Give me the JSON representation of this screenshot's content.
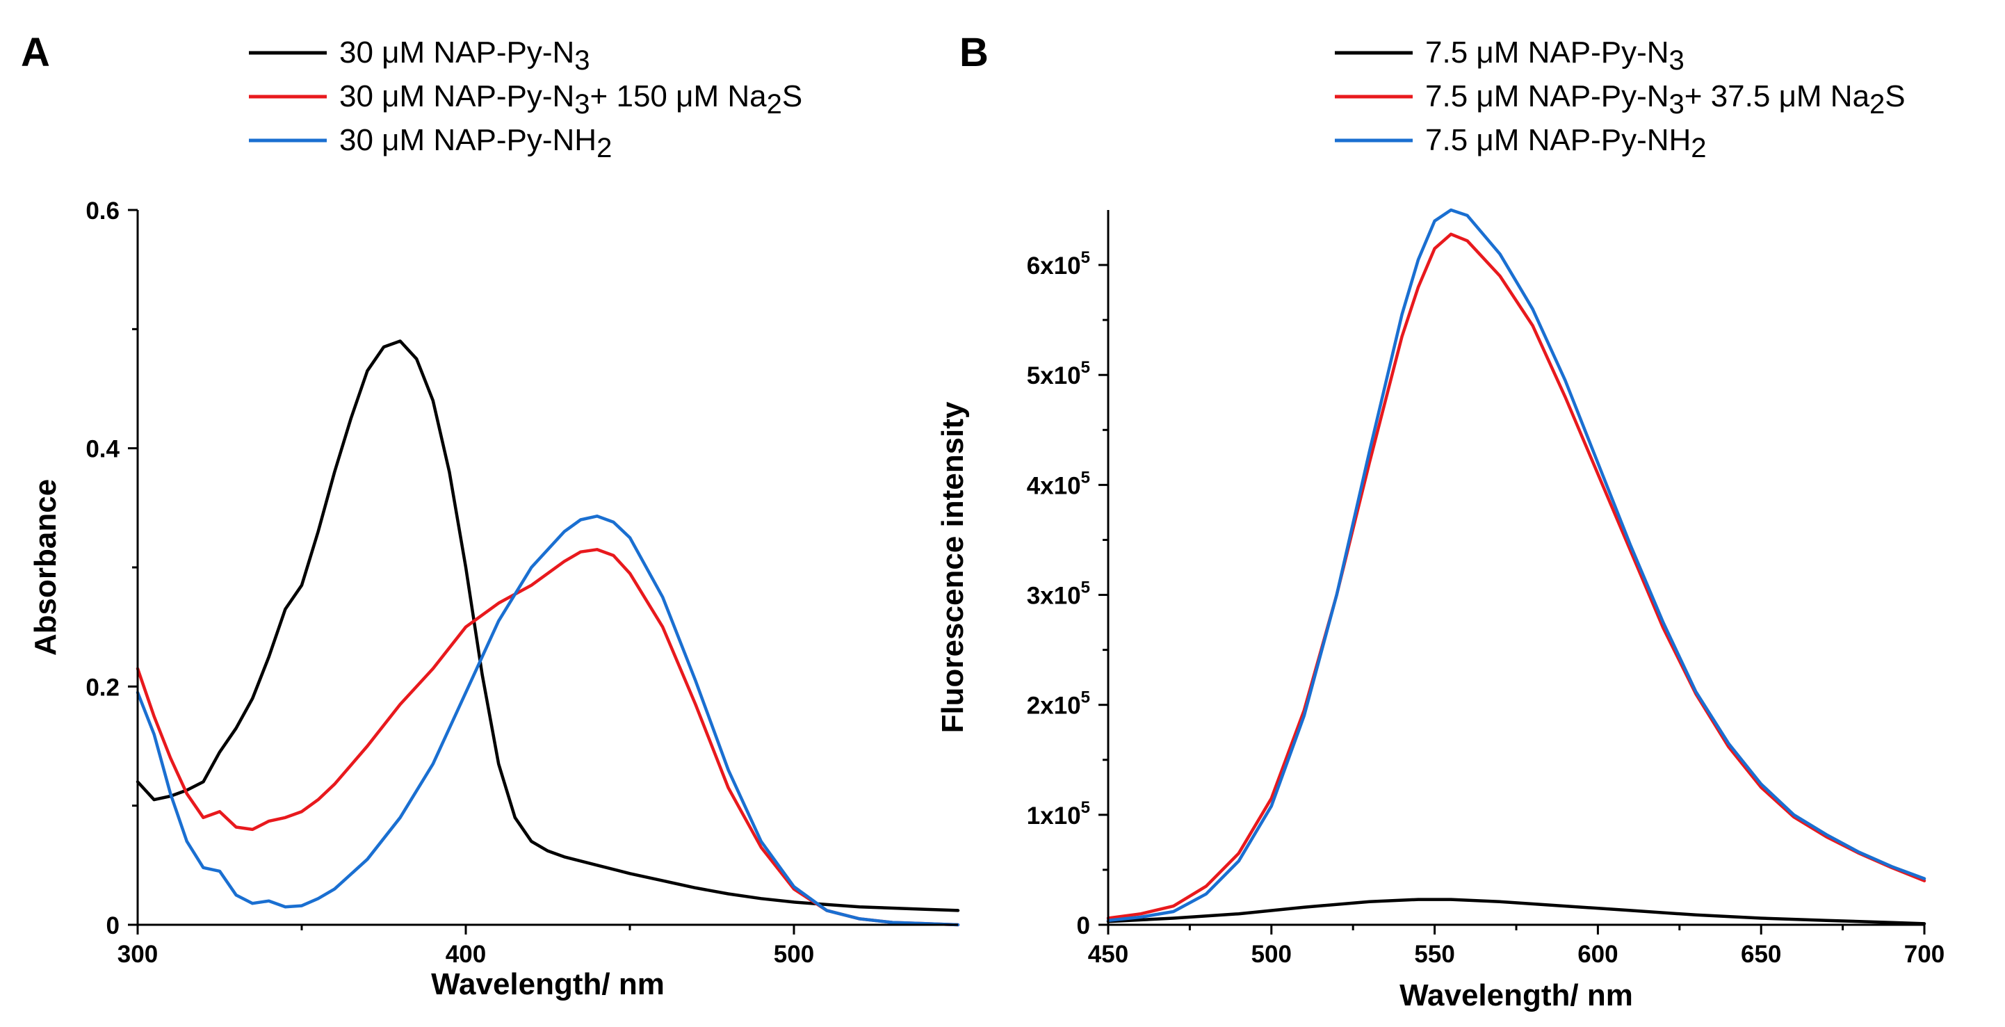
{
  "chart_data": [
    {
      "panel": "A",
      "type": "line",
      "xlabel": "Wavelength/ nm",
      "ylabel": "Absorbance",
      "xlim": [
        300,
        550
      ],
      "ylim": [
        0,
        0.6
      ],
      "xticks": [
        300,
        400,
        500
      ],
      "yticks": [
        0,
        0.2,
        0.4,
        0.6
      ],
      "xtick_labels": [
        "300",
        "400",
        "500"
      ],
      "ytick_labels": [
        "0",
        "0.2",
        "0.4",
        "0.6"
      ],
      "grid": false,
      "legend_position": "top",
      "series": [
        {
          "name": "30 μM NAP-Py-N3",
          "legend_parts": [
            "30 μM NAP-Py-N",
            "3"
          ],
          "color": "#000000",
          "x": [
            300,
            305,
            310,
            315,
            320,
            325,
            330,
            335,
            340,
            345,
            350,
            355,
            360,
            365,
            370,
            375,
            380,
            385,
            390,
            395,
            400,
            405,
            410,
            415,
            420,
            425,
            430,
            440,
            450,
            460,
            470,
            480,
            490,
            500,
            510,
            520,
            530,
            540,
            550
          ],
          "y": [
            0.12,
            0.105,
            0.108,
            0.113,
            0.12,
            0.145,
            0.165,
            0.19,
            0.225,
            0.265,
            0.285,
            0.33,
            0.38,
            0.425,
            0.465,
            0.485,
            0.49,
            0.475,
            0.44,
            0.38,
            0.3,
            0.21,
            0.135,
            0.09,
            0.07,
            0.062,
            0.057,
            0.05,
            0.043,
            0.037,
            0.031,
            0.026,
            0.022,
            0.019,
            0.017,
            0.015,
            0.014,
            0.013,
            0.012
          ]
        },
        {
          "name": "30 μM NAP-Py-N3+ 150 μM Na2S",
          "legend_parts": [
            "30 μM NAP-Py-N",
            "3",
            "+ 150 μM Na",
            "2",
            "S"
          ],
          "color": "#e8191d",
          "x": [
            300,
            305,
            310,
            315,
            320,
            325,
            330,
            335,
            340,
            345,
            350,
            355,
            360,
            370,
            380,
            390,
            400,
            410,
            420,
            430,
            435,
            440,
            445,
            450,
            460,
            470,
            480,
            490,
            500,
            510,
            520,
            530,
            540,
            550
          ],
          "y": [
            0.215,
            0.175,
            0.14,
            0.11,
            0.09,
            0.095,
            0.082,
            0.08,
            0.087,
            0.09,
            0.095,
            0.105,
            0.118,
            0.15,
            0.185,
            0.215,
            0.25,
            0.27,
            0.285,
            0.305,
            0.313,
            0.315,
            0.31,
            0.295,
            0.25,
            0.185,
            0.115,
            0.065,
            0.03,
            0.012,
            0.005,
            0.002,
            0.001,
            0.0
          ]
        },
        {
          "name": "30 μM NAP-Py-NH2",
          "legend_parts": [
            "30 μM NAP-Py-NH",
            "2"
          ],
          "color": "#1a6fd1",
          "x": [
            300,
            305,
            310,
            315,
            320,
            325,
            330,
            335,
            340,
            345,
            350,
            355,
            360,
            370,
            380,
            390,
            400,
            410,
            420,
            430,
            435,
            440,
            445,
            450,
            460,
            470,
            480,
            490,
            500,
            510,
            520,
            530,
            540,
            550
          ],
          "y": [
            0.195,
            0.16,
            0.11,
            0.07,
            0.048,
            0.045,
            0.025,
            0.018,
            0.02,
            0.015,
            0.016,
            0.022,
            0.03,
            0.055,
            0.09,
            0.135,
            0.195,
            0.255,
            0.3,
            0.33,
            0.34,
            0.343,
            0.338,
            0.325,
            0.275,
            0.205,
            0.13,
            0.07,
            0.032,
            0.012,
            0.005,
            0.002,
            0.001,
            0.0
          ]
        }
      ]
    },
    {
      "panel": "B",
      "type": "line",
      "xlabel": "Wavelength/ nm",
      "ylabel": "Fluorescence intensity",
      "xlim": [
        450,
        700
      ],
      "ylim": [
        0,
        650000
      ],
      "xticks": [
        450,
        500,
        550,
        600,
        650,
        700
      ],
      "yticks": [
        0,
        100000,
        200000,
        300000,
        400000,
        500000,
        600000
      ],
      "xtick_labels": [
        "450",
        "500",
        "550",
        "600",
        "650",
        "700"
      ],
      "ytick_labels": [
        [
          "0",
          ""
        ],
        [
          "1x10",
          "5"
        ],
        [
          "2x10",
          "5"
        ],
        [
          "3x10",
          "5"
        ],
        [
          "4x10",
          "5"
        ],
        [
          "5x10",
          "5"
        ],
        [
          "6x10",
          "5"
        ]
      ],
      "grid": false,
      "legend_position": "top",
      "series": [
        {
          "name": "7.5 μM NAP-Py-N3",
          "legend_parts": [
            "7.5 μM NAP-Py-N",
            "3"
          ],
          "color": "#000000",
          "x": [
            450,
            470,
            490,
            510,
            530,
            545,
            555,
            570,
            590,
            610,
            630,
            650,
            670,
            690,
            700
          ],
          "y": [
            3000,
            6000,
            10000,
            16000,
            21000,
            23000,
            23000,
            21000,
            17000,
            13000,
            9000,
            6000,
            4000,
            2000,
            1000
          ]
        },
        {
          "name": "7.5 μM NAP-Py-N3+ 37.5 μM Na2S",
          "legend_parts": [
            "7.5 μM NAP-Py-N",
            "3",
            "+ 37.5 μM Na",
            "2",
            "S"
          ],
          "color": "#e8191d",
          "x": [
            450,
            460,
            470,
            480,
            490,
            500,
            510,
            520,
            530,
            540,
            545,
            550,
            555,
            560,
            570,
            580,
            590,
            600,
            610,
            620,
            630,
            640,
            650,
            660,
            670,
            680,
            690,
            700
          ],
          "y": [
            6000,
            10000,
            17000,
            35000,
            65000,
            115000,
            195000,
            300000,
            420000,
            535000,
            580000,
            615000,
            628000,
            622000,
            590000,
            545000,
            480000,
            410000,
            340000,
            270000,
            210000,
            162000,
            125000,
            98000,
            80000,
            65000,
            52000,
            40000
          ]
        },
        {
          "name": "7.5 μM NAP-Py-NH2",
          "legend_parts": [
            "7.5 μM NAP-Py-NH",
            "2"
          ],
          "color": "#1a6fd1",
          "x": [
            450,
            460,
            470,
            480,
            490,
            500,
            510,
            520,
            530,
            540,
            545,
            550,
            555,
            560,
            570,
            580,
            590,
            600,
            610,
            620,
            630,
            640,
            650,
            660,
            670,
            680,
            690,
            700
          ],
          "y": [
            4000,
            7000,
            12000,
            28000,
            58000,
            108000,
            190000,
            300000,
            430000,
            555000,
            605000,
            640000,
            650000,
            645000,
            610000,
            560000,
            495000,
            420000,
            345000,
            275000,
            212000,
            165000,
            128000,
            100000,
            82000,
            66000,
            53000,
            42000
          ]
        }
      ]
    }
  ]
}
